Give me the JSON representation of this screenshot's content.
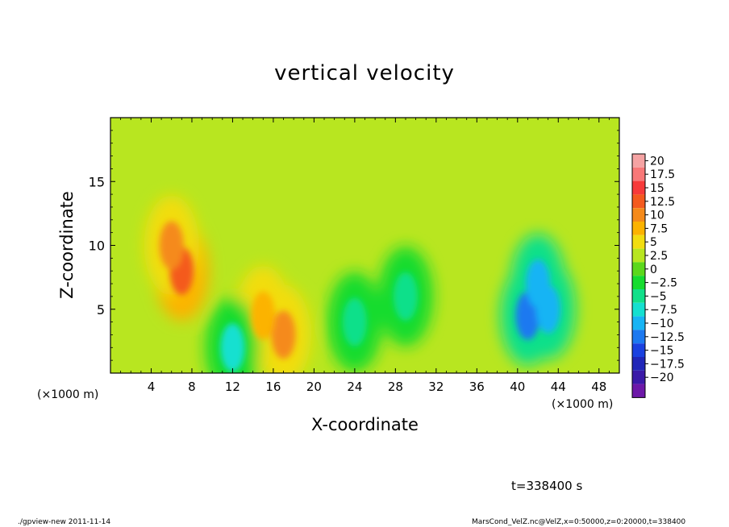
{
  "chart_data": {
    "type": "heatmap",
    "title": "vertical velocity",
    "xlabel": "X-coordinate",
    "ylabel": "Z-coordinate",
    "x_unit": "(×1000 m)",
    "x_unit_right": "(×1000 m)",
    "xlim": [
      0,
      50
    ],
    "ylim": [
      0,
      20
    ],
    "x_ticks": [
      4,
      8,
      12,
      16,
      20,
      24,
      28,
      32,
      36,
      40,
      44,
      48
    ],
    "y_ticks": [
      5,
      10,
      15
    ],
    "colorbar": {
      "levels": [
        "20",
        "17.5",
        "15",
        "12.5",
        "10",
        "7.5",
        "5",
        "2.5",
        "0",
        "−2.5",
        "−5",
        "−7.5",
        "−10",
        "−12.5",
        "−15",
        "−17.5",
        "−20"
      ],
      "colors": [
        "#f5a3a3",
        "#f87878",
        "#f73a3a",
        "#f45a1e",
        "#f58a1a",
        "#fcb300",
        "#f2dd10",
        "#b8e620",
        "#5cd81c",
        "#16dc2f",
        "#11e08a",
        "#14e0d0",
        "#17b4f4",
        "#1c79f0",
        "#1a41e0",
        "#2026b8",
        "#3b1aa8",
        "#6d18a8"
      ]
    },
    "features": [
      {
        "x": 7,
        "z": 8,
        "value": 12.5
      },
      {
        "x": 6,
        "z": 10,
        "value": 10
      },
      {
        "x": 17,
        "z": 3,
        "value": 10
      },
      {
        "x": 15,
        "z": 4.5,
        "value": 7.5
      },
      {
        "x": 12,
        "z": 2,
        "value": -7.5
      },
      {
        "x": 41,
        "z": 4.5,
        "value": -12.5
      },
      {
        "x": 42,
        "z": 7,
        "value": -10
      },
      {
        "x": 43,
        "z": 5,
        "value": -10
      },
      {
        "x": 29,
        "z": 6,
        "value": -5
      },
      {
        "x": 24,
        "z": 4,
        "value": -5
      }
    ],
    "annotation": "t=338400 s"
  },
  "footer": {
    "left": "./gpview-new  2011-11-14",
    "right": "MarsCond_VelZ.nc@VelZ,x=0:50000,z=0:20000,t=338400"
  }
}
